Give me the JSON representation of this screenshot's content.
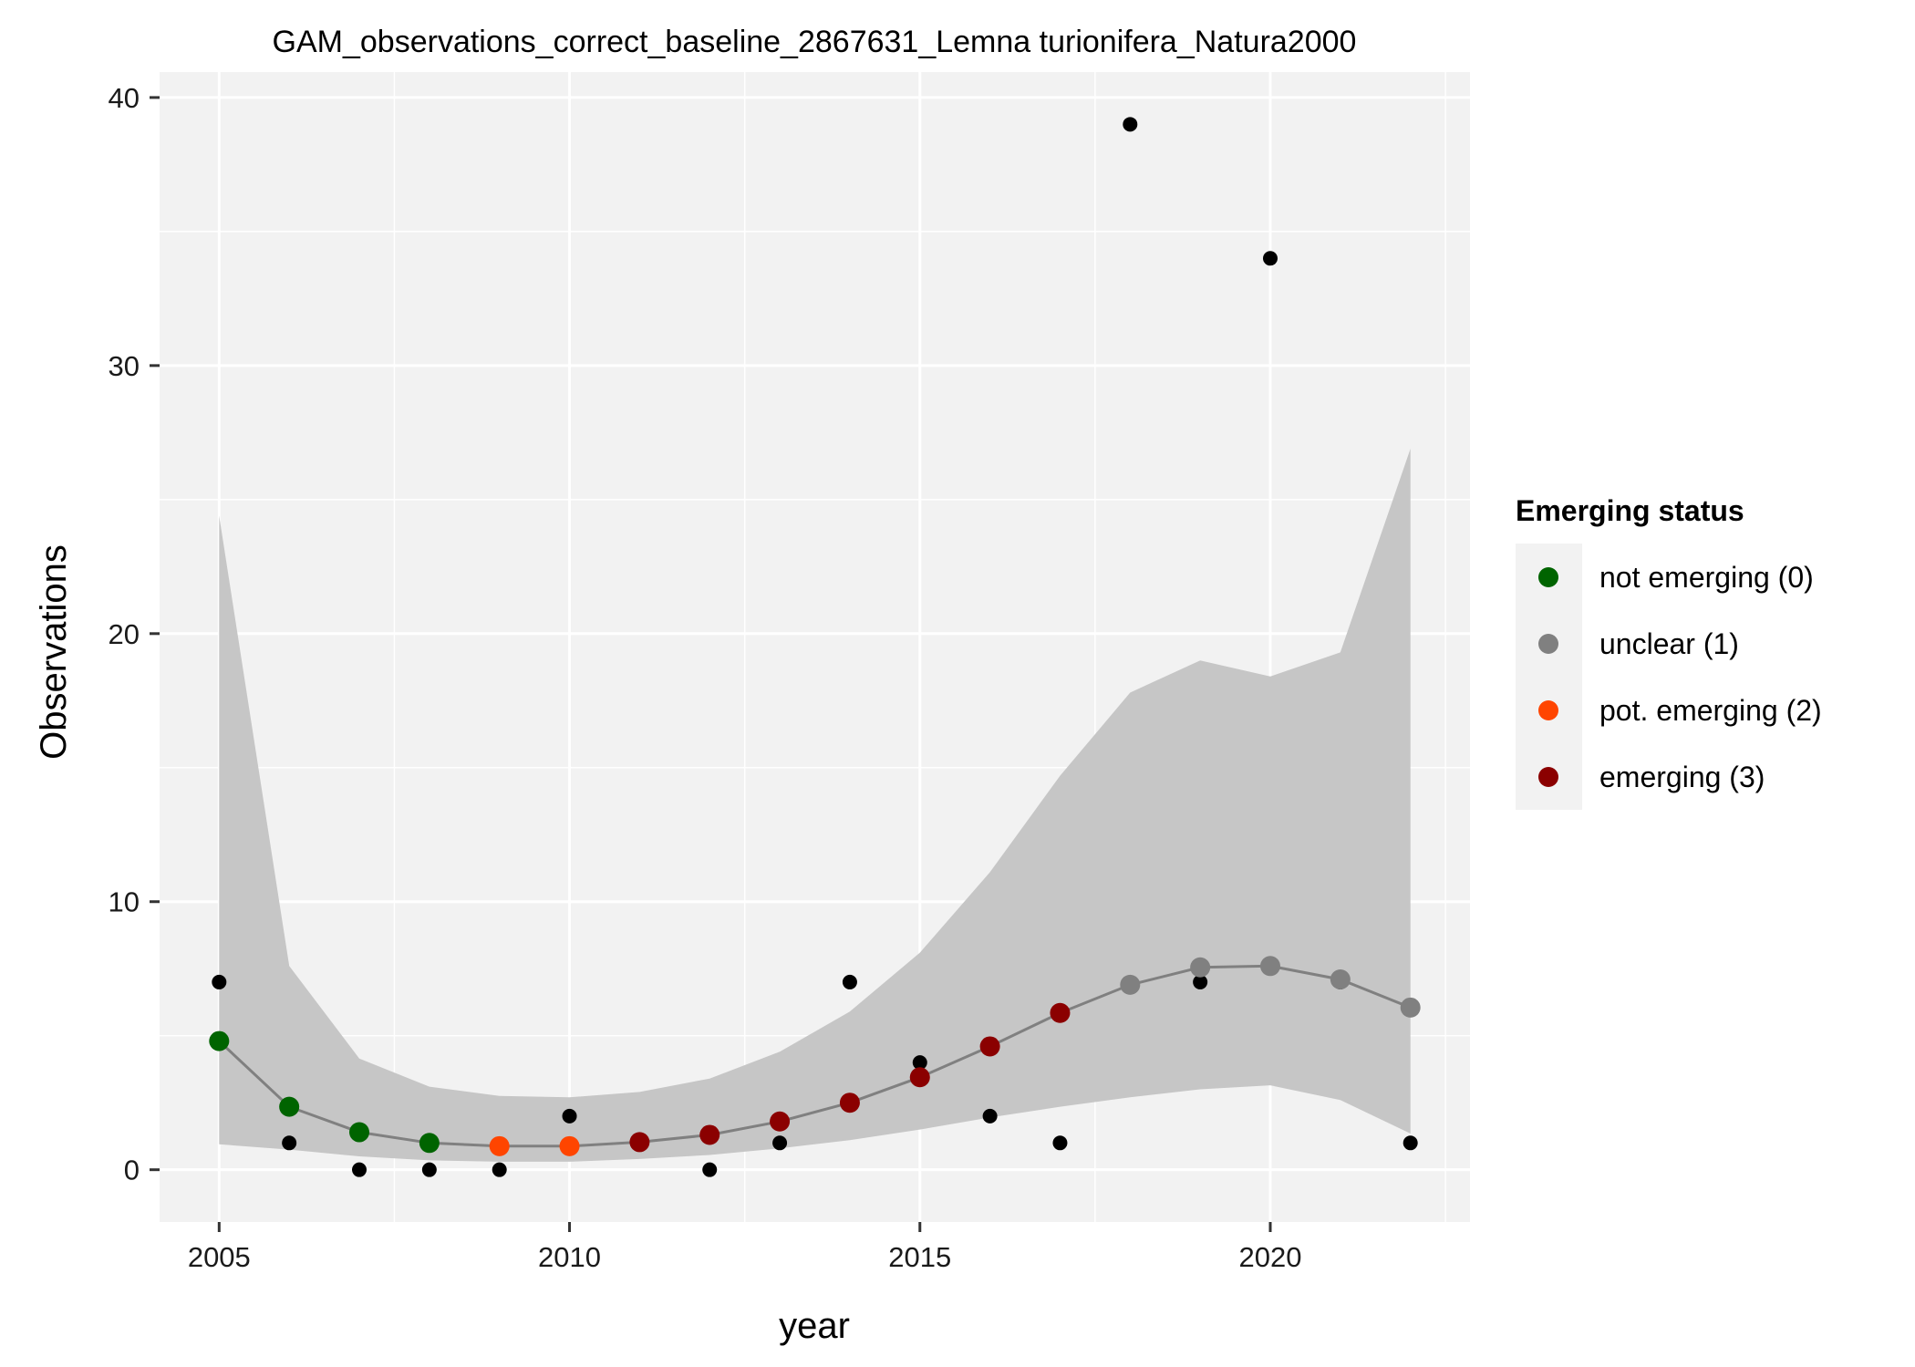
{
  "chart_data": {
    "type": "scatter",
    "title": "GAM_observations_correct_baseline_2867631_Lemna turionifera_Natura2000",
    "xlabel": "year",
    "ylabel": "Observations",
    "xlim": [
      2004.15,
      2022.85
    ],
    "ylim": [
      -1.95,
      40.95
    ],
    "x_ticks": [
      2005,
      2010,
      2015,
      2020
    ],
    "y_ticks": [
      0,
      10,
      20,
      30,
      40
    ],
    "x_tick_labels": [
      "2005",
      "2010",
      "2015",
      "2020"
    ],
    "y_tick_labels": [
      "0",
      "10",
      "20",
      "30",
      "40"
    ],
    "grid": true,
    "legend": {
      "title": "Emerging status",
      "placement": "right",
      "entries": [
        {
          "label": "not emerging (0)",
          "color": "#006400"
        },
        {
          "label": "unclear (1)",
          "color": "#808080"
        },
        {
          "label": "pot. emerging (2)",
          "color": "#FF4500"
        },
        {
          "label": "emerging (3)",
          "color": "#8B0000"
        }
      ]
    },
    "observations": {
      "x": [
        2005,
        2006,
        2007,
        2008,
        2009,
        2010,
        2011,
        2012,
        2013,
        2014,
        2015,
        2016,
        2017,
        2018,
        2019,
        2020,
        2021,
        2022
      ],
      "y": [
        7,
        1,
        0,
        0,
        0,
        2,
        1,
        0,
        1,
        7,
        4,
        2,
        1,
        39,
        7,
        34,
        7,
        1
      ],
      "color": "#000000"
    },
    "fit": {
      "x": [
        2005,
        2006,
        2007,
        2008,
        2009,
        2010,
        2011,
        2012,
        2013,
        2014,
        2015,
        2016,
        2017,
        2018,
        2019,
        2020,
        2021,
        2022
      ],
      "y": [
        4.8,
        2.35,
        1.4,
        1.0,
        0.88,
        0.88,
        1.03,
        1.3,
        1.8,
        2.5,
        3.45,
        4.6,
        5.85,
        6.9,
        7.55,
        7.6,
        7.1,
        6.05
      ],
      "lower": [
        0.95,
        0.75,
        0.5,
        0.35,
        0.3,
        0.3,
        0.4,
        0.55,
        0.8,
        1.1,
        1.5,
        1.95,
        2.35,
        2.7,
        3.0,
        3.15,
        2.6,
        1.35
      ],
      "upper": [
        24.4,
        7.6,
        4.15,
        3.1,
        2.75,
        2.7,
        2.9,
        3.4,
        4.4,
        5.9,
        8.1,
        11.1,
        14.7,
        17.8,
        19.0,
        18.4,
        19.3,
        26.9
      ],
      "status": [
        0,
        0,
        0,
        0,
        2,
        2,
        3,
        3,
        3,
        3,
        3,
        3,
        3,
        1,
        1,
        1,
        1,
        1
      ],
      "line_color": "#808080",
      "band_color": "#C6C6C6"
    },
    "panel_background": "#F2F2F2",
    "grid_color": "#FFFFFF"
  }
}
